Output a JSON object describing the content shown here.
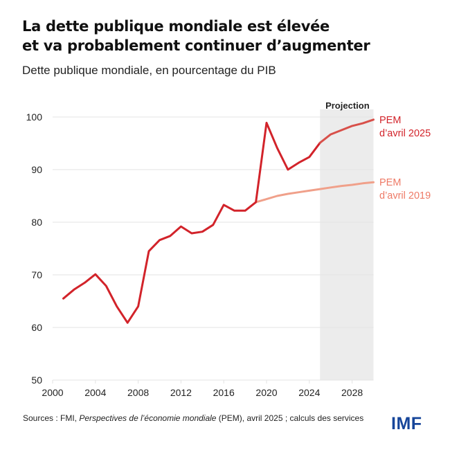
{
  "header": {
    "title_line1": "La dette publique mondiale est élevée",
    "title_line2": "et va probablement continuer d’augmenter",
    "subtitle": "Dette publique mondiale, en pourcentage du PIB"
  },
  "footer": {
    "source_prefix": "Sources : FMI, ",
    "source_italic": "Perspectives de l’économie mondiale",
    "source_suffix": " (PEM), avril 2025 ; calculs des services",
    "logo": "IMF"
  },
  "colors": {
    "weo2025": "#d2232a",
    "weo2025_projection": "#d8504a",
    "weo2019": "#f0a08a",
    "weo2025_label": "#d2232a",
    "weo2019_label": "#ee7a66",
    "projection_shade": "#ececec",
    "grid": "#e3e3e3",
    "logo": "#16459a"
  },
  "chart_data": {
    "type": "line",
    "title": "La dette publique mondiale est élevée et va probablement continuer d’augmenter",
    "subtitle": "Dette publique mondiale, en pourcentage du PIB",
    "xlabel": "",
    "ylabel": "",
    "xlim": [
      2000,
      2030
    ],
    "ylim": [
      50,
      100
    ],
    "x_ticks": [
      2000,
      2004,
      2008,
      2012,
      2016,
      2020,
      2024,
      2028
    ],
    "y_ticks": [
      50,
      60,
      70,
      80,
      90,
      100
    ],
    "grid": true,
    "projection": {
      "label": "Projection",
      "from": 2025,
      "to": 2030
    },
    "series": [
      {
        "name": "PEM d’avril 2025",
        "label_lines": [
          "PEM",
          "d’avril 2025"
        ],
        "x": [
          2001,
          2002,
          2003,
          2004,
          2005,
          2006,
          2007,
          2008,
          2009,
          2010,
          2011,
          2012,
          2013,
          2014,
          2015,
          2016,
          2017,
          2018,
          2019,
          2020,
          2021,
          2022,
          2023,
          2024,
          2025,
          2026,
          2027,
          2028,
          2029,
          2030
        ],
        "values": [
          65.5,
          67.2,
          68.5,
          70.1,
          67.9,
          64.0,
          60.9,
          64.0,
          74.5,
          76.6,
          77.4,
          79.2,
          77.9,
          78.2,
          79.5,
          83.3,
          82.2,
          82.2,
          83.8,
          98.9,
          94.1,
          90.0,
          91.3,
          92.4,
          95.1,
          96.7,
          97.5,
          98.3,
          98.8,
          99.5
        ]
      },
      {
        "name": "PEM d’avril 2019",
        "label_lines": [
          "PEM",
          "d’avril 2019"
        ],
        "x": [
          2019,
          2020,
          2021,
          2022,
          2023,
          2024,
          2025,
          2026,
          2027,
          2028,
          2029,
          2030
        ],
        "values": [
          83.8,
          84.4,
          85.0,
          85.4,
          85.7,
          86.0,
          86.3,
          86.6,
          86.9,
          87.1,
          87.4,
          87.6
        ]
      }
    ]
  }
}
